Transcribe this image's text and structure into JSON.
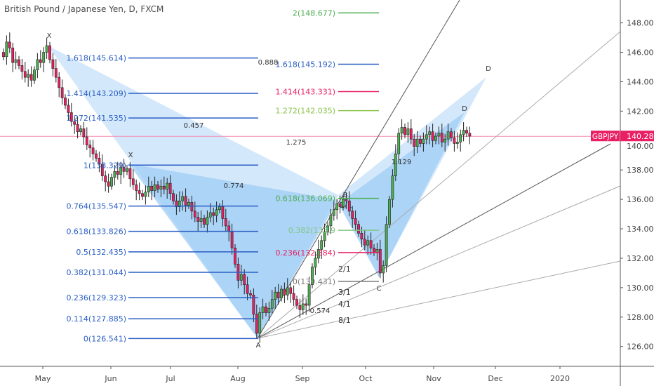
{
  "header": {
    "title": "British Pound / Japanese Yen, D, FXCM"
  },
  "colors": {
    "up": "#4caf50",
    "down": "#e91e63",
    "fib_blue": "#2a5ec4",
    "pattern_light": "#cfe6fb",
    "pattern_dark": "#9fcdf5",
    "price_line": "#f48fb1",
    "symbol_badge": "#e91e63"
  },
  "symbol_badge": {
    "symbol": "GBPJPY",
    "price": "140.289",
    "value": 140.289
  },
  "chart_data": {
    "type": "candlestick",
    "yaxis": {
      "range": [
        124.65,
        149.55
      ],
      "ticks": [
        "148.000",
        "146.000",
        "144.000",
        "142.000",
        "140.000",
        "138.000",
        "136.000",
        "134.000",
        "132.000",
        "130.000",
        "128.000",
        "126.000"
      ],
      "tick_values": [
        148,
        146,
        144,
        142,
        140,
        138,
        136,
        134,
        132,
        130,
        128,
        126
      ]
    },
    "xaxis": {
      "ticks": [
        "May",
        "Jun",
        "Jul",
        "Aug",
        "Sep",
        "Oct",
        "Nov",
        "Dec",
        "2020"
      ]
    },
    "closes": [
      145.7,
      146.7,
      146.3,
      145.3,
      145.5,
      145.1,
      144.7,
      144.3,
      144.5,
      144.1,
      144.8,
      145.5,
      145.3,
      146.0,
      146.45,
      145.5,
      144.9,
      144.3,
      143.6,
      142.9,
      142.4,
      141.9,
      141.3,
      141.1,
      140.6,
      140.8,
      140.25,
      139.7,
      139.5,
      139.1,
      138.8,
      138.4,
      137.6,
      137.2,
      136.9,
      137.5,
      137.9,
      137.7,
      138.2,
      137.9,
      138.1,
      137.4,
      137.0,
      136.6,
      136.4,
      136.2,
      136.5,
      136.9,
      136.6,
      137.0,
      136.7,
      136.9,
      136.7,
      137.1,
      136.4,
      135.9,
      135.5,
      135.9,
      136.2,
      135.6,
      135.8,
      135.2,
      134.8,
      134.5,
      134.7,
      134.3,
      134.8,
      135.1,
      134.9,
      135.3,
      135.5,
      134.7,
      134.2,
      133.8,
      132.7,
      131.6,
      130.5,
      130.9,
      130.2,
      129.6,
      129.5,
      128.2,
      126.9,
      128.3,
      128.7,
      128.3,
      128.6,
      129.2,
      129.7,
      129.3,
      129.9,
      129.5,
      130.0,
      129.6,
      129.2,
      128.8,
      128.5,
      128.9,
      128.8,
      130.2,
      131.4,
      132.0,
      132.6,
      133.2,
      133.8,
      134.2,
      134.9,
      135.3,
      135.7,
      135.5,
      136.0,
      135.9,
      135.2,
      134.7,
      134.3,
      133.7,
      133.3,
      132.9,
      133.2,
      132.7,
      132.4,
      132.6,
      131.0,
      131.5,
      134.3,
      136.0,
      137.6,
      139.1,
      140.5,
      140.9,
      140.4,
      140.8,
      140.1,
      139.6,
      140.1,
      139.8,
      140.1,
      140.4,
      140.6,
      140.0,
      140.3,
      140.5,
      139.9,
      140.1,
      140.6,
      140.2,
      139.8,
      139.9,
      140.4,
      140.7,
      140.5,
      140.3
    ],
    "fib_left": [
      {
        "label": "1.618(145.614)",
        "value": 145.614
      },
      {
        "label": "1.414(143.209)",
        "value": 143.209
      },
      {
        "label": "1.272(141.535)",
        "value": 141.535
      },
      {
        "label": "1(138.329)",
        "value": 138.329
      },
      {
        "label": "0.764(135.547)",
        "value": 135.547
      },
      {
        "label": "0.618(133.826)",
        "value": 133.826
      },
      {
        "label": "0.5(132.435)",
        "value": 132.435
      },
      {
        "label": "0.382(131.044)",
        "value": 131.044
      },
      {
        "label": "0.236(129.323)",
        "value": 129.323
      },
      {
        "label": "0.114(127.885)",
        "value": 127.885
      },
      {
        "label": "0(126.541)",
        "value": 126.541
      }
    ],
    "fib_right": [
      {
        "label": "2(148.677)",
        "value": 148.677,
        "color": "#4caf50"
      },
      {
        "label": "1.618(145.192)",
        "value": 145.192,
        "color": "#2a5ec4"
      },
      {
        "label": "1.414(143.331)",
        "value": 143.331,
        "color": "#e91e63"
      },
      {
        "label": "1.272(142.035)",
        "value": 142.035,
        "color": "#8bc34a"
      },
      {
        "label": "0.618(136.069)",
        "value": 136.069,
        "color": "#4caf50"
      },
      {
        "label": "0.382(133.9",
        "value": 133.9,
        "color": "#81c784"
      },
      {
        "label": "0.236(132.384)",
        "value": 132.384,
        "color": "#e91e63"
      },
      {
        "label": "0(130.431)",
        "value": 130.431,
        "color": "#787878"
      }
    ],
    "pattern_points": [
      "X",
      "X",
      "A",
      "B",
      "C",
      "D",
      "D"
    ],
    "ratios": [
      "0.888",
      "0.457",
      "1.275",
      "0.774",
      "1.129",
      "0.574"
    ],
    "fan_labels": [
      "1/1",
      "2/1",
      "3/1",
      "4/1",
      "8/1"
    ]
  }
}
